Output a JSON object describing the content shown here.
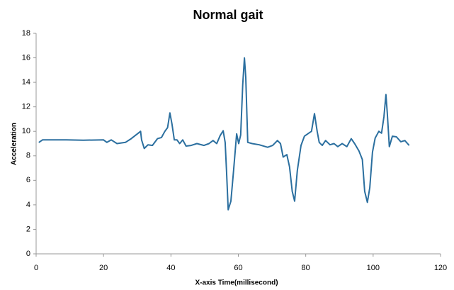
{
  "chart_data": {
    "type": "line",
    "title": "Normal gait",
    "xlabel": "X-axis Time(millisecond)",
    "ylabel": "Acceleration",
    "x": [
      0.8,
      1.9,
      4,
      9,
      14,
      20,
      21,
      22.3,
      24,
      26.5,
      28.2,
      30.3,
      31,
      31.3,
      32.1,
      33.2,
      34.5,
      36,
      37.2,
      38.2,
      39,
      39.7,
      40.3,
      41,
      41.8,
      42.6,
      43.5,
      44.5,
      46,
      47.7,
      49.8,
      51.3,
      52.5,
      53.6,
      54.6,
      55.5,
      56.1,
      56.5,
      57,
      57.8,
      58.6,
      59.5,
      60.1,
      60.7,
      61.3,
      61.8,
      62.2,
      62.8,
      64.1,
      66.2,
      68.7,
      70.2,
      71.6,
      72.5,
      73.3,
      74.4,
      75.2,
      76,
      76.7,
      77.5,
      78.6,
      79.6,
      80.9,
      81.7,
      82.6,
      83.4,
      84,
      84.9,
      85.9,
      87.2,
      88.4,
      89.5,
      90.8,
      92.2,
      93.5,
      94.5,
      95.8,
      96.8,
      97.5,
      98.3,
      99,
      99.8,
      100.6,
      101.7,
      102.5,
      103.2,
      103.8,
      104.2,
      104.8,
      105.7,
      106.9,
      108.2,
      109.4,
      110.7
    ],
    "series": [
      {
        "name": "Acceleration",
        "color": "#2b6f9f",
        "values": [
          9.09,
          9.3,
          9.3,
          9.3,
          9.28,
          9.3,
          9.1,
          9.3,
          9.0,
          9.1,
          9.4,
          9.85,
          10.0,
          9.3,
          8.6,
          8.9,
          8.85,
          9.4,
          9.5,
          10.0,
          10.3,
          11.5,
          10.6,
          9.3,
          9.3,
          9.0,
          9.3,
          8.8,
          8.85,
          9.0,
          8.85,
          9.0,
          9.25,
          9.0,
          9.65,
          10.05,
          9.1,
          6.8,
          3.6,
          4.3,
          6.8,
          9.8,
          9.0,
          9.7,
          13.8,
          16.0,
          14.4,
          9.1,
          9.0,
          8.9,
          8.7,
          8.85,
          9.25,
          9.0,
          7.9,
          8.1,
          7.1,
          5.1,
          4.3,
          6.8,
          8.85,
          9.6,
          9.85,
          10.0,
          11.45,
          10.0,
          9.1,
          8.85,
          9.25,
          8.9,
          9.0,
          8.75,
          9.0,
          8.75,
          9.4,
          9.0,
          8.4,
          7.7,
          5.1,
          4.2,
          5.4,
          8.3,
          9.45,
          10.0,
          9.85,
          11.2,
          13.0,
          11.5,
          8.75,
          9.6,
          9.55,
          9.15,
          9.25,
          8.85
        ]
      }
    ],
    "xlim": [
      0,
      120
    ],
    "xticks": [
      0,
      20,
      40,
      60,
      80,
      100,
      120
    ],
    "ylim": [
      0,
      18
    ],
    "yticks": [
      0,
      2,
      4,
      6,
      8,
      10,
      12,
      14,
      16,
      18
    ],
    "grid": false
  }
}
